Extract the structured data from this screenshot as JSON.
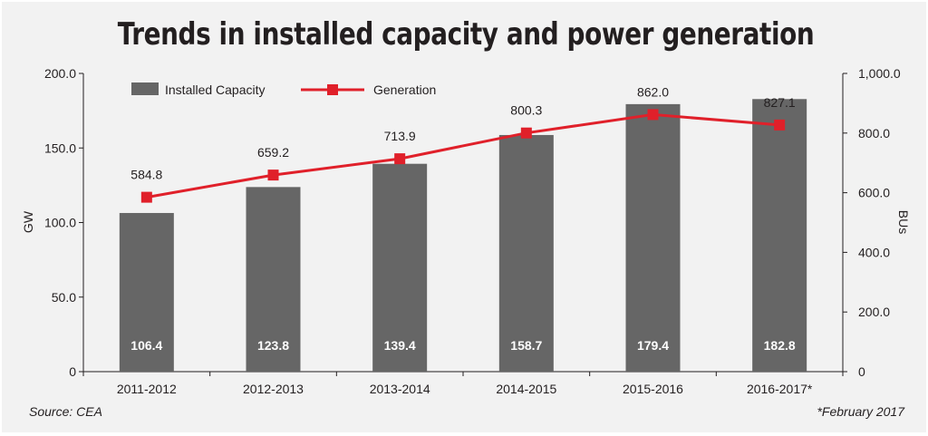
{
  "chart_data": {
    "type": "bar+line",
    "title": "Trends in installed capacity and power generation",
    "categories": [
      "2011-2012",
      "2012-2013",
      "2013-2014",
      "2014-2015",
      "2015-2016",
      "2016-2017*"
    ],
    "series": [
      {
        "name": "Installed Capacity",
        "kind": "bar",
        "axis": "left",
        "values": [
          106.4,
          123.8,
          139.4,
          158.7,
          179.4,
          182.8
        ],
        "labels": [
          "106.4",
          "123.8",
          "139.4",
          "158.7",
          "179.4",
          "182.8"
        ]
      },
      {
        "name": "Generation",
        "kind": "line",
        "axis": "right",
        "values": [
          584.8,
          659.2,
          713.9,
          800.3,
          862.0,
          827.1
        ],
        "labels": [
          "584.8",
          "659.2",
          "713.9",
          "800.3",
          "862.0",
          "827.1"
        ]
      }
    ],
    "ylabel": "GW",
    "y2label": "BUs",
    "ylim": [
      0,
      200
    ],
    "y2lim": [
      0,
      1000
    ],
    "yticks": [
      "0",
      "50.0",
      "100.0",
      "150.0",
      "200.0"
    ],
    "y2ticks": [
      "0",
      "200.0",
      "400.0",
      "600.0",
      "800.0",
      "1,000.0"
    ],
    "legend_position": "top-left",
    "source": "Source: CEA",
    "footnote": "*February 2017",
    "colors": {
      "bar": "#666666",
      "line": "#e0202a",
      "marker": "#e0202a",
      "text": "#231f20",
      "background": "#f2f2f2"
    }
  }
}
